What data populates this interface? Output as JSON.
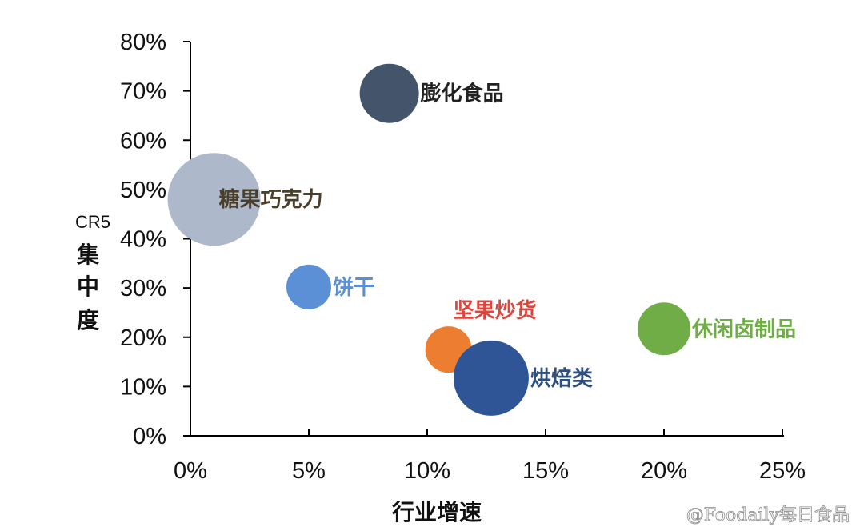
{
  "chart_data": {
    "type": "scatter",
    "xlabel": "行业增速",
    "ylabel_prefix": "CR5",
    "ylabel_chars": [
      "集",
      "中",
      "度"
    ],
    "xlim": [
      0,
      25
    ],
    "ylim": [
      0,
      80
    ],
    "x_ticks": [
      {
        "value": 0,
        "label": "0%"
      },
      {
        "value": 5,
        "label": "5%"
      },
      {
        "value": 10,
        "label": "10%"
      },
      {
        "value": 15,
        "label": "15%"
      },
      {
        "value": 20,
        "label": "20%"
      },
      {
        "value": 25,
        "label": "25%"
      }
    ],
    "y_ticks": [
      {
        "value": 0,
        "label": "0%"
      },
      {
        "value": 10,
        "label": "10%"
      },
      {
        "value": 20,
        "label": "20%"
      },
      {
        "value": 30,
        "label": "30%"
      },
      {
        "value": 40,
        "label": "40%"
      },
      {
        "value": 50,
        "label": "50%"
      },
      {
        "value": 60,
        "label": "60%"
      },
      {
        "value": 70,
        "label": "70%"
      },
      {
        "value": 80,
        "label": "80%"
      }
    ],
    "grid": false,
    "legend": "none",
    "points": [
      {
        "name": "膨化食品",
        "x": 8.4,
        "y": 69.5,
        "size": 37,
        "color": "#44546a",
        "label_color": "#222222",
        "label_pos": "right"
      },
      {
        "name": "糖果巧克力",
        "x": 1.0,
        "y": 48.0,
        "size": 58,
        "color": "#adb9ca",
        "label_color": "#4a3f2a",
        "label_pos": "inside-right"
      },
      {
        "name": "饼干",
        "x": 5.0,
        "y": 30.2,
        "size": 28,
        "color": "#5b8fd6",
        "label_color": "#5b8fd6",
        "label_pos": "right"
      },
      {
        "name": "坚果炒货",
        "x": 10.9,
        "y": 17.5,
        "size": 29,
        "color": "#ed7d31",
        "label_color": "#d9473f",
        "label_pos": "above"
      },
      {
        "name": "烘焙类",
        "x": 12.7,
        "y": 11.7,
        "size": 47,
        "color": "#2f5597",
        "label_color": "#2f4f7f",
        "label_pos": "right"
      },
      {
        "name": "休闲卤制品",
        "x": 20.0,
        "y": 21.7,
        "size": 33,
        "color": "#70ad47",
        "label_color": "#70ad47",
        "label_pos": "right"
      }
    ]
  },
  "watermark": "@Foodaily每日食品"
}
